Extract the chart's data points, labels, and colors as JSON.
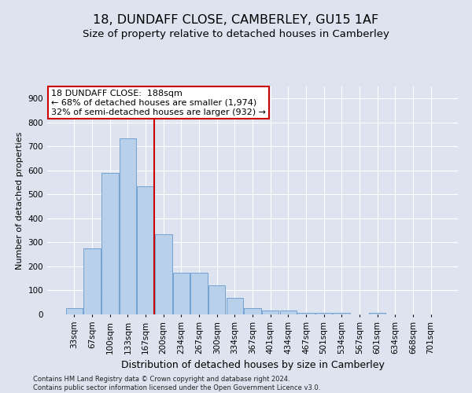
{
  "title": "18, DUNDAFF CLOSE, CAMBERLEY, GU15 1AF",
  "subtitle": "Size of property relative to detached houses in Camberley",
  "xlabel": "Distribution of detached houses by size in Camberley",
  "ylabel": "Number of detached properties",
  "categories": [
    "33sqm",
    "67sqm",
    "100sqm",
    "133sqm",
    "167sqm",
    "200sqm",
    "234sqm",
    "267sqm",
    "300sqm",
    "334sqm",
    "367sqm",
    "401sqm",
    "434sqm",
    "467sqm",
    "501sqm",
    "534sqm",
    "567sqm",
    "601sqm",
    "634sqm",
    "668sqm",
    "701sqm"
  ],
  "values": [
    25,
    275,
    590,
    735,
    535,
    335,
    175,
    175,
    120,
    70,
    25,
    15,
    15,
    8,
    8,
    8,
    0,
    8,
    0,
    0,
    0
  ],
  "bar_color": "#b8d0ea",
  "bar_edge_color": "#6699cc",
  "vline_x": 4.5,
  "vline_color": "#cc0000",
  "annotation_text": "18 DUNDAFF CLOSE:  188sqm\n← 68% of detached houses are smaller (1,974)\n32% of semi-detached houses are larger (932) →",
  "annotation_box_color": "#ffffff",
  "annotation_box_edge_color": "#cc0000",
  "ylim": [
    0,
    950
  ],
  "yticks": [
    0,
    100,
    200,
    300,
    400,
    500,
    600,
    700,
    800,
    900
  ],
  "background_color": "#dde4f0",
  "plot_bg_color": "#dde4f0",
  "grid_color": "#ffffff",
  "footer": "Contains HM Land Registry data © Crown copyright and database right 2024.\nContains public sector information licensed under the Open Government Licence v3.0.",
  "title_fontsize": 11.5,
  "subtitle_fontsize": 9.5,
  "xlabel_fontsize": 9,
  "ylabel_fontsize": 8,
  "tick_fontsize": 7.5,
  "annotation_fontsize": 8,
  "footer_fontsize": 6
}
